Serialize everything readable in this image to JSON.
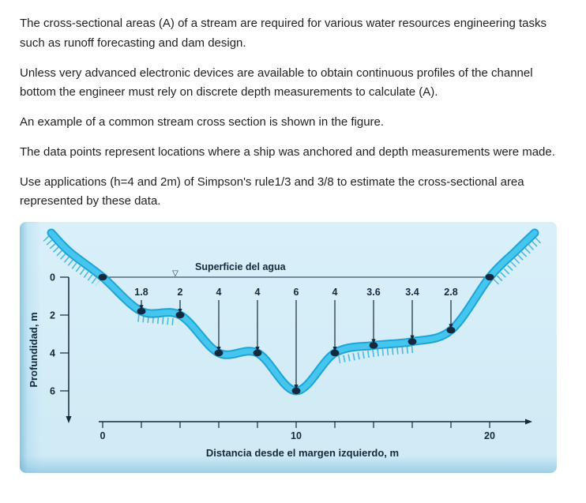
{
  "document": {
    "paragraphs": [
      "The cross-sectional areas (A) of a stream are required for various water resources engineering tasks such as runoff forecasting and dam design.",
      "Unless very advanced electronic devices are available to obtain continuous profiles of the channel bottom the engineer must rely on discrete depth measurements to calculate (A).",
      "An example of a common stream cross section is shown in the figure.",
      "The data points represent locations where a ship was anchored and depth measurements were made.",
      "Use applications (h=4 and 2m) of Simpson's rule1/3 and 3/8 to estimate the cross-sectional area represented by these data."
    ]
  },
  "figure": {
    "surface_label": "Superficie del agua",
    "surface_marker": "▽",
    "y_axis_label": "Profundidad, m",
    "x_axis_label": "Distancia desde el margen izquierdo, m",
    "colors": {
      "background": "#cfeaf5",
      "water": "#45c6ef",
      "water_dark": "#1ea4d8",
      "hatch": "#2fb0e0",
      "dark": "#14293e"
    }
  },
  "chart_data": {
    "type": "line",
    "title": "",
    "x": [
      0,
      2,
      4,
      6,
      8,
      10,
      12,
      14,
      16,
      18,
      20
    ],
    "series": [
      {
        "name": "Depth, m",
        "values": [
          0,
          1.8,
          2,
          4,
          4,
          6,
          4,
          3.6,
          3.4,
          2.8,
          0
        ]
      }
    ],
    "point_labels": [
      "1.8",
      "2",
      "4",
      "4",
      "6",
      "4",
      "3.6",
      "3.4",
      "2.8"
    ],
    "xlabel": "Distancia desde el margen izquierdo, m",
    "ylabel": "Profundidad, m",
    "xlim": [
      0,
      20
    ],
    "ylim": [
      0,
      6
    ],
    "y_ticks": [
      0,
      2,
      4,
      6
    ],
    "x_tick_labels": [
      0,
      10,
      20
    ],
    "x_tick_step": 2,
    "y_inverted": true,
    "grid": false,
    "legend": false,
    "annotations": [
      "Superficie del agua"
    ]
  }
}
